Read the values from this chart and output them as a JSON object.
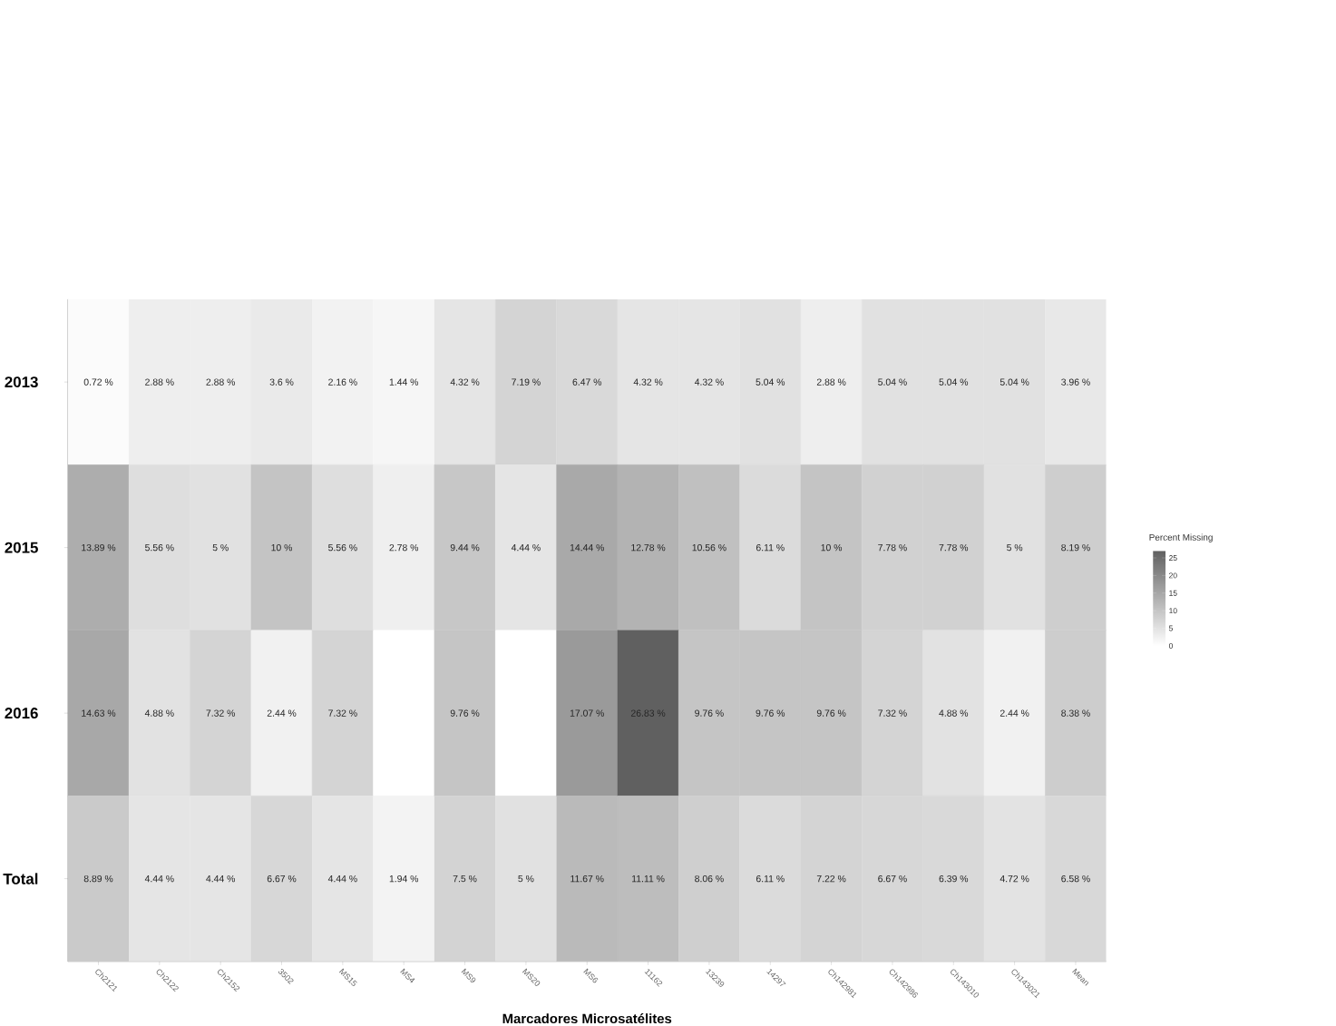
{
  "chart_data": {
    "type": "heatmap",
    "xlabel": "Marcadores Microsatélites",
    "clabel": "Percent Missing",
    "categories": [
      "Ch2121",
      "Ch2122",
      "Ch2152",
      "3502",
      "MS15",
      "MS4",
      "MS9",
      "MS20",
      "MS6",
      "11162",
      "13239",
      "14297",
      "Ch142981",
      "Ch142986",
      "Ch143010",
      "Ch143021",
      "Mean"
    ],
    "y_categories": [
      "2013",
      "2015",
      "2016",
      "Total"
    ],
    "cells": [
      [
        0.72,
        2.88,
        2.88,
        3.6,
        2.16,
        1.44,
        4.32,
        7.19,
        6.47,
        4.32,
        4.32,
        5.04,
        2.88,
        5.04,
        5.04,
        5.04,
        3.96
      ],
      [
        13.89,
        5.56,
        5,
        10,
        5.56,
        2.78,
        9.44,
        4.44,
        14.44,
        12.78,
        10.56,
        6.11,
        10,
        7.78,
        7.78,
        5,
        8.19
      ],
      [
        14.63,
        4.88,
        7.32,
        2.44,
        7.32,
        0,
        9.76,
        0,
        17.07,
        26.83,
        9.76,
        9.76,
        9.76,
        7.32,
        4.88,
        2.44,
        8.38
      ],
      [
        8.89,
        4.44,
        4.44,
        6.67,
        4.44,
        1.94,
        7.5,
        5,
        11.67,
        11.11,
        8.06,
        6.11,
        7.22,
        6.67,
        6.39,
        4.72,
        6.58
      ]
    ],
    "cell_labels": [
      [
        "0.72 %",
        "2.88 %",
        "2.88 %",
        "3.6 %",
        "2.16 %",
        "1.44 %",
        "4.32 %",
        "7.19 %",
        "6.47 %",
        "4.32 %",
        "4.32 %",
        "5.04 %",
        "2.88 %",
        "5.04 %",
        "5.04 %",
        "5.04 %",
        "3.96 %"
      ],
      [
        "13.89 %",
        "5.56 %",
        "5 %",
        "10 %",
        "5.56 %",
        "2.78 %",
        "9.44 %",
        "4.44 %",
        "14.44 %",
        "12.78 %",
        "10.56 %",
        "6.11 %",
        "10 %",
        "7.78 %",
        "7.78 %",
        "5 %",
        "8.19 %"
      ],
      [
        "14.63 %",
        "4.88 %",
        "7.32 %",
        "2.44 %",
        "7.32 %",
        null,
        "9.76 %",
        null,
        "17.07 %",
        "26.83 %",
        "9.76 %",
        "9.76 %",
        "9.76 %",
        "7.32 %",
        "4.88 %",
        "2.44 %",
        "8.38 %"
      ],
      [
        "8.89 %",
        "4.44 %",
        "4.44 %",
        "6.67 %",
        "4.44 %",
        "1.94 %",
        "7.5 %",
        "5 %",
        "11.67 %",
        "11.11 %",
        "8.06 %",
        "6.11 %",
        "7.22 %",
        "6.67 %",
        "6.39 %",
        "4.72 %",
        "6.58 %"
      ]
    ],
    "clim": [
      0,
      27
    ],
    "cticks": [
      0,
      5,
      10,
      15,
      20,
      25
    ]
  }
}
